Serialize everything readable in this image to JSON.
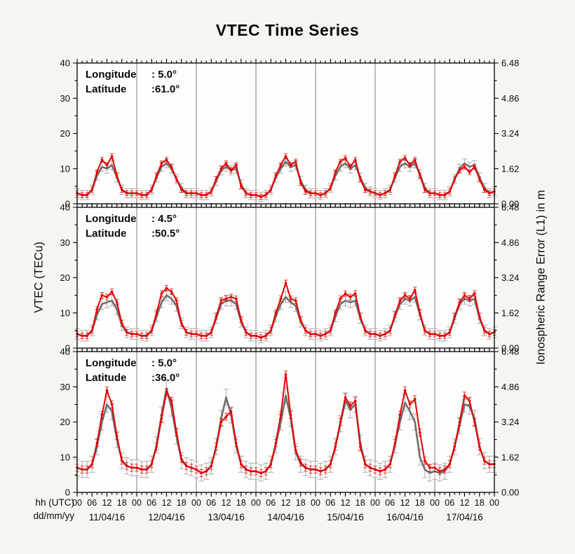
{
  "title": "VTEC Time Series",
  "axes": {
    "ylabel_left": "VTEC (TECu)",
    "ylabel_right": "Ionospheric Range Error (L1) in m",
    "xlabel_hh": "hh (UTC)",
    "xlabel_date": "dd/mm/yy",
    "ylim": [
      0,
      40
    ],
    "yticks_left": [
      0,
      10,
      20,
      30,
      40
    ],
    "yticks_right": [
      "0.00",
      "1.62",
      "3.24",
      "4.86",
      "6.48"
    ],
    "hour_labels": [
      "00",
      "06",
      "12",
      "18"
    ],
    "final_hour_label": "00",
    "dates": [
      "11/04/16",
      "12/04/16",
      "13/04/16",
      "14/04/16",
      "15/04/16",
      "16/04/16",
      "17/04/16"
    ],
    "hours_total": 168,
    "grid_every_hours": 24
  },
  "colors": {
    "background": "#f5f5f2",
    "panel_background": "#fdfdfc",
    "frame": "#000000",
    "grid": "#7b7b7b",
    "red": "#e60000",
    "gray": "#6f6f6f",
    "gray_error": "#adadad",
    "text": "#0a0a0a"
  },
  "chart_data": [
    {
      "type": "line",
      "panel": 1,
      "legend": [
        {
          "label": "Longitude",
          "value": ":  5.0°"
        },
        {
          "label": "Latitude",
          "value": ":61.0°"
        }
      ],
      "x_start_hour": 0,
      "x_step_hours": 2,
      "series": [
        {
          "name": "gray-series",
          "color_key": "gray",
          "err": 1.3,
          "values": [
            3,
            2.5,
            2.5,
            4,
            8,
            10.5,
            10,
            11,
            7.5,
            4,
            3,
            3,
            3,
            2.5,
            2.5,
            4,
            7.5,
            10.5,
            11.5,
            10,
            7,
            4.5,
            3,
            3,
            3,
            2.5,
            2.5,
            3.5,
            6.5,
            9.5,
            10.5,
            9.5,
            10,
            5.5,
            3,
            2.5,
            2.5,
            2,
            2.5,
            4,
            7.5,
            10,
            12,
            10.5,
            11,
            6.5,
            4,
            3,
            3,
            2.5,
            3,
            4.5,
            8,
            10.5,
            11.5,
            10,
            11,
            7.5,
            4.5,
            3.5,
            3,
            2.5,
            3,
            4,
            7.5,
            10.5,
            11.5,
            10.5,
            11.5,
            8.5,
            4.5,
            3,
            3,
            2.5,
            2.5,
            3.5,
            7,
            10,
            11.5,
            10.5,
            11,
            7.5,
            4.5,
            3,
            3.5
          ]
        },
        {
          "name": "red-series",
          "color_key": "red",
          "err": 0.7,
          "values": [
            3,
            2.5,
            2.5,
            4,
            9,
            12.5,
            11,
            13.5,
            8,
            4,
            3,
            3,
            3,
            2.5,
            2.5,
            4,
            8,
            11.5,
            12.5,
            10.5,
            7,
            4,
            3,
            3,
            3,
            2.5,
            2.5,
            3.5,
            7,
            10,
            11.5,
            9.5,
            11,
            5,
            3,
            2.5,
            2.5,
            2,
            2.5,
            4,
            8,
            11,
            13.5,
            11,
            12,
            6,
            3.5,
            3,
            3,
            2.5,
            3,
            4.5,
            9,
            12,
            13,
            10.5,
            12.5,
            7,
            4,
            3.5,
            3,
            2.5,
            3,
            4,
            8,
            12,
            13,
            11,
            12.5,
            8,
            4,
            3,
            3,
            2.5,
            2.5,
            3.5,
            7,
            9.5,
            10.5,
            9,
            10.5,
            7,
            4,
            3,
            3.5
          ]
        }
      ]
    },
    {
      "type": "line",
      "panel": 2,
      "legend": [
        {
          "label": "Longitude",
          "value": ":  4.5°"
        },
        {
          "label": "Latitude",
          "value": ":50.5°"
        }
      ],
      "x_start_hour": 0,
      "x_step_hours": 2,
      "series": [
        {
          "name": "gray-series",
          "color_key": "gray",
          "err": 1.5,
          "values": [
            4,
            3.5,
            3.5,
            5,
            9.5,
            12.5,
            13,
            13.5,
            11,
            6.5,
            4.5,
            4,
            4,
            3.5,
            3.5,
            5,
            9,
            13,
            15,
            14,
            12,
            7,
            4.5,
            4,
            4,
            3.5,
            3.5,
            4.5,
            8.5,
            12.5,
            13.5,
            13.5,
            12.5,
            7.5,
            4.5,
            3.5,
            3.5,
            3,
            3.5,
            5,
            9,
            12.5,
            14.5,
            13,
            12,
            7.5,
            5,
            4,
            4,
            3.5,
            4,
            5,
            9,
            12.5,
            13.5,
            13,
            13.5,
            8.5,
            5,
            4,
            4,
            3.5,
            4,
            5,
            9,
            12.5,
            14,
            13.5,
            14.5,
            9.5,
            5,
            4,
            4,
            3.5,
            3.5,
            4.5,
            8.5,
            12.5,
            14,
            13.5,
            14,
            8.5,
            5,
            4,
            4.5
          ]
        },
        {
          "name": "red-series",
          "color_key": "red",
          "err": 0.8,
          "values": [
            4,
            3.5,
            3.5,
            5,
            11,
            15,
            14.5,
            16,
            13,
            7,
            4.5,
            4,
            4,
            3.5,
            3.5,
            5,
            10,
            15.5,
            17,
            16,
            13.5,
            7,
            4.5,
            4,
            4,
            3.5,
            3.5,
            4.5,
            9,
            13.5,
            14,
            14.5,
            14,
            8,
            4.5,
            3.5,
            3.5,
            3,
            3.5,
            5,
            10,
            14,
            18.5,
            14,
            13.5,
            8,
            5,
            4,
            4,
            3.5,
            4,
            5,
            10,
            14,
            15.5,
            14.5,
            15.5,
            9,
            5,
            4,
            4,
            3.5,
            4,
            5,
            9.5,
            13.5,
            15,
            14,
            16.5,
            10,
            5,
            4,
            4,
            3.5,
            3.5,
            4.5,
            9,
            13,
            15,
            14,
            15.5,
            9,
            5,
            4,
            4.5
          ]
        }
      ]
    },
    {
      "type": "line",
      "panel": 3,
      "legend": [
        {
          "label": "Longitude",
          "value": ":  5.0°"
        },
        {
          "label": "Latitude",
          "value": ":36.0°"
        }
      ],
      "x_start_hour": 0,
      "x_step_hours": 2,
      "series": [
        {
          "name": "gray-series",
          "color_key": "gray",
          "err": 2.3,
          "values": [
            7,
            6.5,
            6.5,
            8,
            13,
            20,
            25,
            23,
            15,
            9,
            7.5,
            7,
            7,
            6.5,
            6.5,
            8,
            13.5,
            22,
            29.5,
            24,
            16,
            9,
            7.5,
            7,
            6.5,
            5.5,
            6,
            7.5,
            13,
            21,
            27,
            22,
            13.5,
            8,
            6.5,
            6,
            6,
            5.5,
            6,
            8,
            13.5,
            20,
            27.5,
            21,
            11.5,
            8,
            7,
            6.5,
            6.5,
            6,
            6.5,
            8,
            13,
            19.5,
            26,
            23.5,
            25,
            14,
            8,
            7,
            6.5,
            6,
            6.5,
            8,
            13.5,
            20,
            25.5,
            23,
            20,
            10,
            6.5,
            5.5,
            6,
            5.5,
            6,
            8,
            13,
            19,
            25,
            24.5,
            21,
            13,
            9,
            8,
            8
          ]
        },
        {
          "name": "red-series",
          "color_key": "red",
          "err": 1.0,
          "values": [
            7,
            6.5,
            6.5,
            8,
            14,
            22,
            29,
            25,
            16,
            9,
            7.5,
            7,
            7,
            6.5,
            6.5,
            8,
            13,
            21,
            28.5,
            26,
            17,
            9.5,
            7.5,
            7,
            6.5,
            5.5,
            6,
            7.5,
            13,
            20,
            21.5,
            23,
            14,
            8,
            6.5,
            6,
            6,
            5.5,
            6,
            8,
            14,
            22,
            33.5,
            22,
            12,
            8.5,
            7,
            6.5,
            6.5,
            6,
            6.5,
            8,
            13,
            20,
            27,
            24.5,
            26,
            13,
            8,
            7,
            6.5,
            6,
            6.5,
            8,
            14,
            22,
            29,
            25,
            26.5,
            17,
            9,
            7,
            7,
            6,
            6.5,
            8,
            13,
            20,
            27.5,
            26,
            20,
            13,
            9,
            8,
            8
          ]
        }
      ]
    }
  ]
}
